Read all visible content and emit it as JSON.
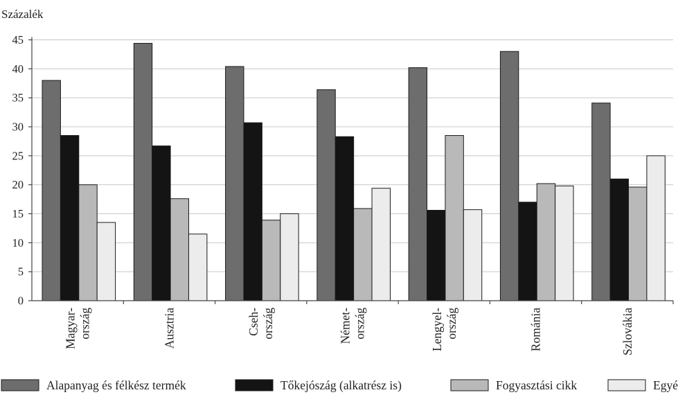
{
  "chart_data": {
    "type": "bar",
    "title": "",
    "ylabel": "Százalék",
    "xlabel": "",
    "ylim": [
      0,
      45
    ],
    "yticks": [
      0,
      5,
      10,
      15,
      20,
      25,
      30,
      35,
      40,
      45
    ],
    "grid": "horizontal",
    "legend_position": "bottom",
    "categories": [
      [
        "Magyar-",
        "ország"
      ],
      [
        "Ausztria"
      ],
      [
        "Cseh-",
        "ország"
      ],
      [
        "Német-",
        "ország"
      ],
      [
        "Lengyel-",
        "ország"
      ],
      [
        "Románia"
      ],
      [
        "Szlovákia"
      ]
    ],
    "series": [
      {
        "name": "Alapanyag és félkész termék",
        "color": "#6d6d6d",
        "values": [
          38,
          44.4,
          40.4,
          36.4,
          40.2,
          43,
          34.1
        ]
      },
      {
        "name": "Tőkejószág (alkatrész is)",
        "color": "#141414",
        "values": [
          28.5,
          26.7,
          30.7,
          28.3,
          15.6,
          17,
          21
        ]
      },
      {
        "name": "Fogyasztási cikk",
        "color": "#b9b9b9",
        "values": [
          20,
          17.6,
          13.9,
          15.9,
          28.5,
          20.2,
          19.6
        ]
      },
      {
        "name": "Egyéb",
        "color": "#ececec",
        "values": [
          13.5,
          11.5,
          15,
          19.4,
          15.7,
          19.8,
          25
        ]
      }
    ]
  }
}
